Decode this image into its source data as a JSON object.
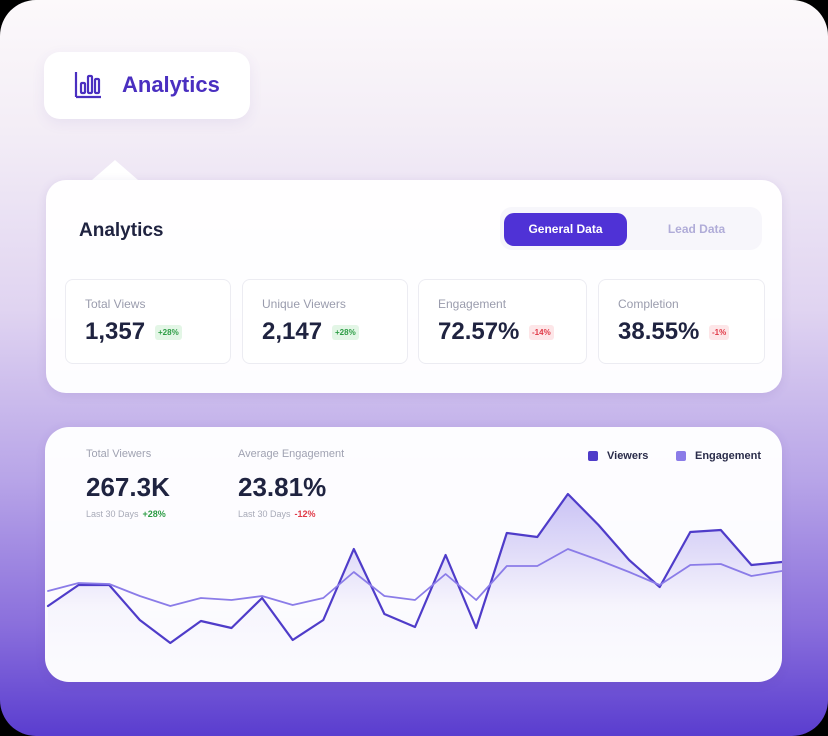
{
  "header": {
    "title": "Analytics"
  },
  "panel": {
    "title": "Analytics",
    "tabs": [
      "General Data",
      "Lead Data"
    ],
    "active_tab": 0,
    "stats": [
      {
        "label": "Total Views",
        "value": "1,357",
        "change": "+28%",
        "trend": "up"
      },
      {
        "label": "Unique Viewers",
        "value": "2,147",
        "change": "+28%",
        "trend": "up"
      },
      {
        "label": "Engagement",
        "value": "72.57%",
        "change": "-14%",
        "trend": "down"
      },
      {
        "label": "Completion",
        "value": "38.55%",
        "change": "-1%",
        "trend": "down"
      }
    ]
  },
  "summary": [
    {
      "label": "Total Viewers",
      "value": "267.3K",
      "period": "Last 30 Days",
      "change": "+28%",
      "trend": "up"
    },
    {
      "label": "Average Engagement",
      "value": "23.81%",
      "period": "Last 30 Days",
      "change": "-12%",
      "trend": "down"
    }
  ],
  "chart_data": {
    "type": "line",
    "categories": [
      null,
      null,
      null,
      null,
      null,
      null,
      null,
      null,
      null,
      null,
      null,
      null,
      null,
      null,
      null,
      null,
      null,
      null,
      null,
      null,
      null,
      null,
      null,
      null,
      null
    ],
    "series": [
      {
        "name": "Viewers",
        "color": "#4f3cc9",
        "values": [
          54,
          75,
          75,
          40,
          17,
          39,
          32,
          62,
          20,
          40,
          111,
          46,
          33,
          105,
          32,
          127,
          123,
          166,
          135,
          100,
          73,
          128,
          130,
          95,
          98
        ]
      },
      {
        "name": "Engagement",
        "color": "#8b7ce8",
        "values": [
          69,
          77,
          76,
          64,
          54,
          62,
          60,
          64,
          55,
          62,
          88,
          64,
          60,
          86,
          60,
          94,
          94,
          111,
          100,
          88,
          75,
          95,
          96,
          84,
          89
        ]
      }
    ]
  }
}
